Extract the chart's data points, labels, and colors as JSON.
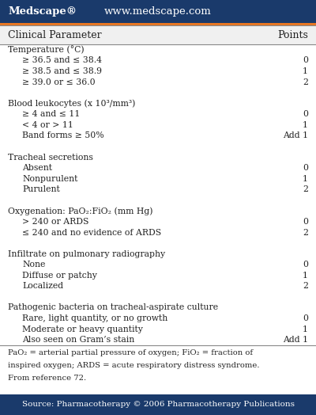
{
  "header_bg": "#1a3a6b",
  "header_text_color": "#ffffff",
  "orange_line_color": "#e87722",
  "col_header_bg": "#f0f0f0",
  "col_header_text": "#222222",
  "body_bg": "#ffffff",
  "footer_bg": "#1a3a6b",
  "footer_text_color": "#ffffff",
  "medscape_text": "Medscape®",
  "url_text": "www.medscape.com",
  "col1_header": "Clinical Parameter",
  "col2_header": "Points",
  "footer_text": "Source: Pharmacotherapy © 2006 Pharmacotherapy Publications",
  "footnote_line1": "PaO₂ = arterial partial pressure of oxygen; FiO₂ = fraction of",
  "footnote_line2": "inspired oxygen; ARDS = acute respiratory distress syndrome.",
  "footnote_line3": "From reference 72.",
  "rows": [
    {
      "indent": 0,
      "text": "Temperature (°C)",
      "points": ""
    },
    {
      "indent": 1,
      "text": "≥ 36.5 and ≤ 38.4",
      "points": "0"
    },
    {
      "indent": 1,
      "text": "≥ 38.5 and ≤ 38.9",
      "points": "1"
    },
    {
      "indent": 1,
      "text": "≥ 39.0 or ≤ 36.0",
      "points": "2"
    },
    {
      "indent": 0,
      "text": "",
      "points": ""
    },
    {
      "indent": 0,
      "text": "Blood leukocytes (x 10³/mm³)",
      "points": ""
    },
    {
      "indent": 1,
      "text": "≥ 4 and ≤ 11",
      "points": "0"
    },
    {
      "indent": 1,
      "text": "< 4 or > 11",
      "points": "1"
    },
    {
      "indent": 1,
      "text": "Band forms ≥ 50%",
      "points": "Add 1"
    },
    {
      "indent": 0,
      "text": "",
      "points": ""
    },
    {
      "indent": 0,
      "text": "Tracheal secretions",
      "points": ""
    },
    {
      "indent": 1,
      "text": "Absent",
      "points": "0"
    },
    {
      "indent": 1,
      "text": "Nonpurulent",
      "points": "1"
    },
    {
      "indent": 1,
      "text": "Purulent",
      "points": "2"
    },
    {
      "indent": 0,
      "text": "",
      "points": ""
    },
    {
      "indent": 0,
      "text": "Oxygenation: PaO₂:FiO₂ (mm Hg)",
      "points": ""
    },
    {
      "indent": 1,
      "text": "> 240 or ARDS",
      "points": "0"
    },
    {
      "indent": 1,
      "text": "≤ 240 and no evidence of ARDS",
      "points": "2"
    },
    {
      "indent": 0,
      "text": "",
      "points": ""
    },
    {
      "indent": 0,
      "text": "Infiltrate on pulmonary radiography",
      "points": ""
    },
    {
      "indent": 1,
      "text": "None",
      "points": "0"
    },
    {
      "indent": 1,
      "text": "Diffuse or patchy",
      "points": "1"
    },
    {
      "indent": 1,
      "text": "Localized",
      "points": "2"
    },
    {
      "indent": 0,
      "text": "",
      "points": ""
    },
    {
      "indent": 0,
      "text": "Pathogenic bacteria on tracheal-aspirate culture",
      "points": ""
    },
    {
      "indent": 1,
      "text": "Rare, light quantity, or no growth",
      "points": "0"
    },
    {
      "indent": 1,
      "text": "Moderate or heavy quantity",
      "points": "1"
    },
    {
      "indent": 1,
      "text": "Also seen on Gram’s stain",
      "points": "Add 1"
    }
  ]
}
